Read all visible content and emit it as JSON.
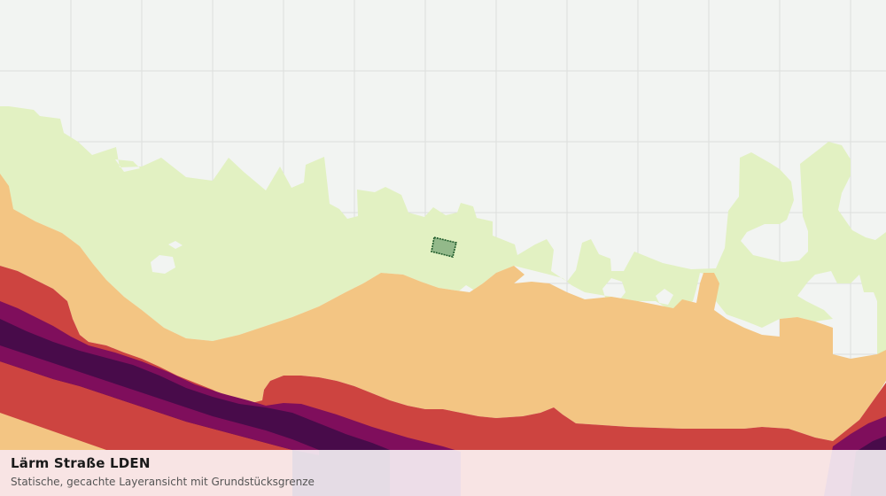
{
  "map": {
    "title": "Lärm Straße LDEN",
    "subtitle": "Statische, gecachte Layeransicht mit Grundstücksgrenze"
  },
  "colors": {
    "background": "#f2f4f2",
    "grid": "#dcdedc",
    "noise_band_1": "#e2f1c2",
    "noise_band_2": "#f3c583",
    "noise_band_3": "#cd4440",
    "noise_band_4": "#7f0e5c",
    "noise_band_5": "#480b4a",
    "parcel_fill": "#93b98a",
    "parcel_stroke": "#1e5a2a"
  },
  "layers": [
    "noise-band-1",
    "noise-band-2",
    "noise-band-3",
    "noise-band-4",
    "noise-band-5",
    "parcel-boundary"
  ]
}
